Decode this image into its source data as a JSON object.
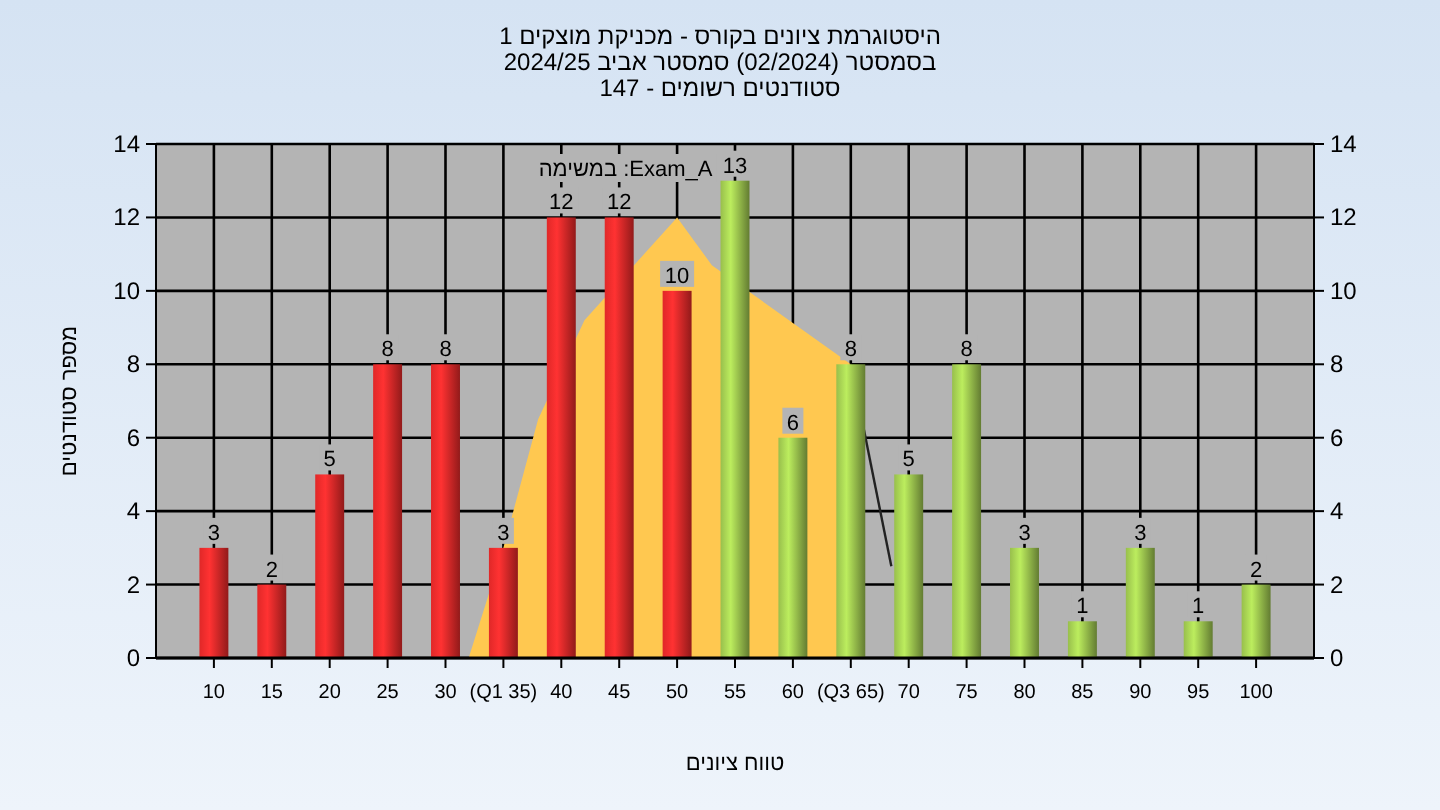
{
  "chart_data": {
    "type": "bar",
    "title": "היסטוגרמת ציונים בקורס - מכניקת מוצקים 1",
    "subtitle": "בסמסטר  (02/2024)  סמסטר אביב 2024/25\nסטודנטים רשומים - 147",
    "xlabel": "טווח ציונים",
    "ylabel": "מספר סטודנטים",
    "annotations": [
      "במשימה :Exam_A"
    ],
    "x": [
      10,
      15,
      20,
      25,
      30,
      35,
      40,
      45,
      50,
      55,
      60,
      65,
      70,
      75,
      80,
      85,
      90,
      95,
      100
    ],
    "series": [
      {
        "type": "area",
        "color": "#ffc850",
        "x": [
          32,
          35,
          38,
          42,
          50,
          53,
          65,
          65
        ],
        "values": [
          0,
          3,
          6.5,
          9.2,
          12,
          10.7,
          8,
          0
        ]
      },
      {
        "type": "line",
        "color": "#222222",
        "x": [
          65,
          68.5
        ],
        "values": [
          8,
          2.5
        ]
      },
      {
        "values": [
          3,
          2,
          5,
          8,
          8,
          3,
          12,
          12,
          10,
          13,
          6,
          8,
          5,
          8,
          3,
          1,
          3,
          1,
          2
        ],
        "value_labels": [
          "3",
          "2",
          "5",
          "8",
          "8",
          "3",
          "12",
          "12",
          "10",
          "13",
          "6",
          "8",
          "5",
          "8",
          "3",
          "1",
          "3",
          "1",
          "2"
        ],
        "colors": [
          "#e02828",
          "#e02828",
          "#e02828",
          "#e02828",
          "#e02828",
          "#e02828",
          "#e02828",
          "#e02828",
          "#e02828",
          "#98bf4c",
          "#98bf4c",
          "#98bf4c",
          "#98bf4c",
          "#98bf4c",
          "#98bf4c",
          "#98bf4c",
          "#98bf4c",
          "#98bf4c",
          "#98bf4c"
        ]
      }
    ],
    "xlim": [
      5,
      105
    ],
    "xticks": [
      10,
      15,
      20,
      25,
      30,
      {
        "value": 35,
        "label": "(Q1 35)"
      },
      40,
      45,
      50,
      55,
      60,
      {
        "value": 65,
        "label": "(Q3 65)"
      },
      70,
      75,
      80,
      85,
      90,
      95,
      100
    ],
    "ylim": [
      0,
      14
    ],
    "yticks": [
      0,
      2,
      4,
      6,
      8,
      10,
      12,
      14
    ],
    "y2lim": [
      0,
      14
    ],
    "y2ticks": [
      0,
      2,
      4,
      6,
      8,
      10,
      12,
      14
    ],
    "grid": true
  }
}
